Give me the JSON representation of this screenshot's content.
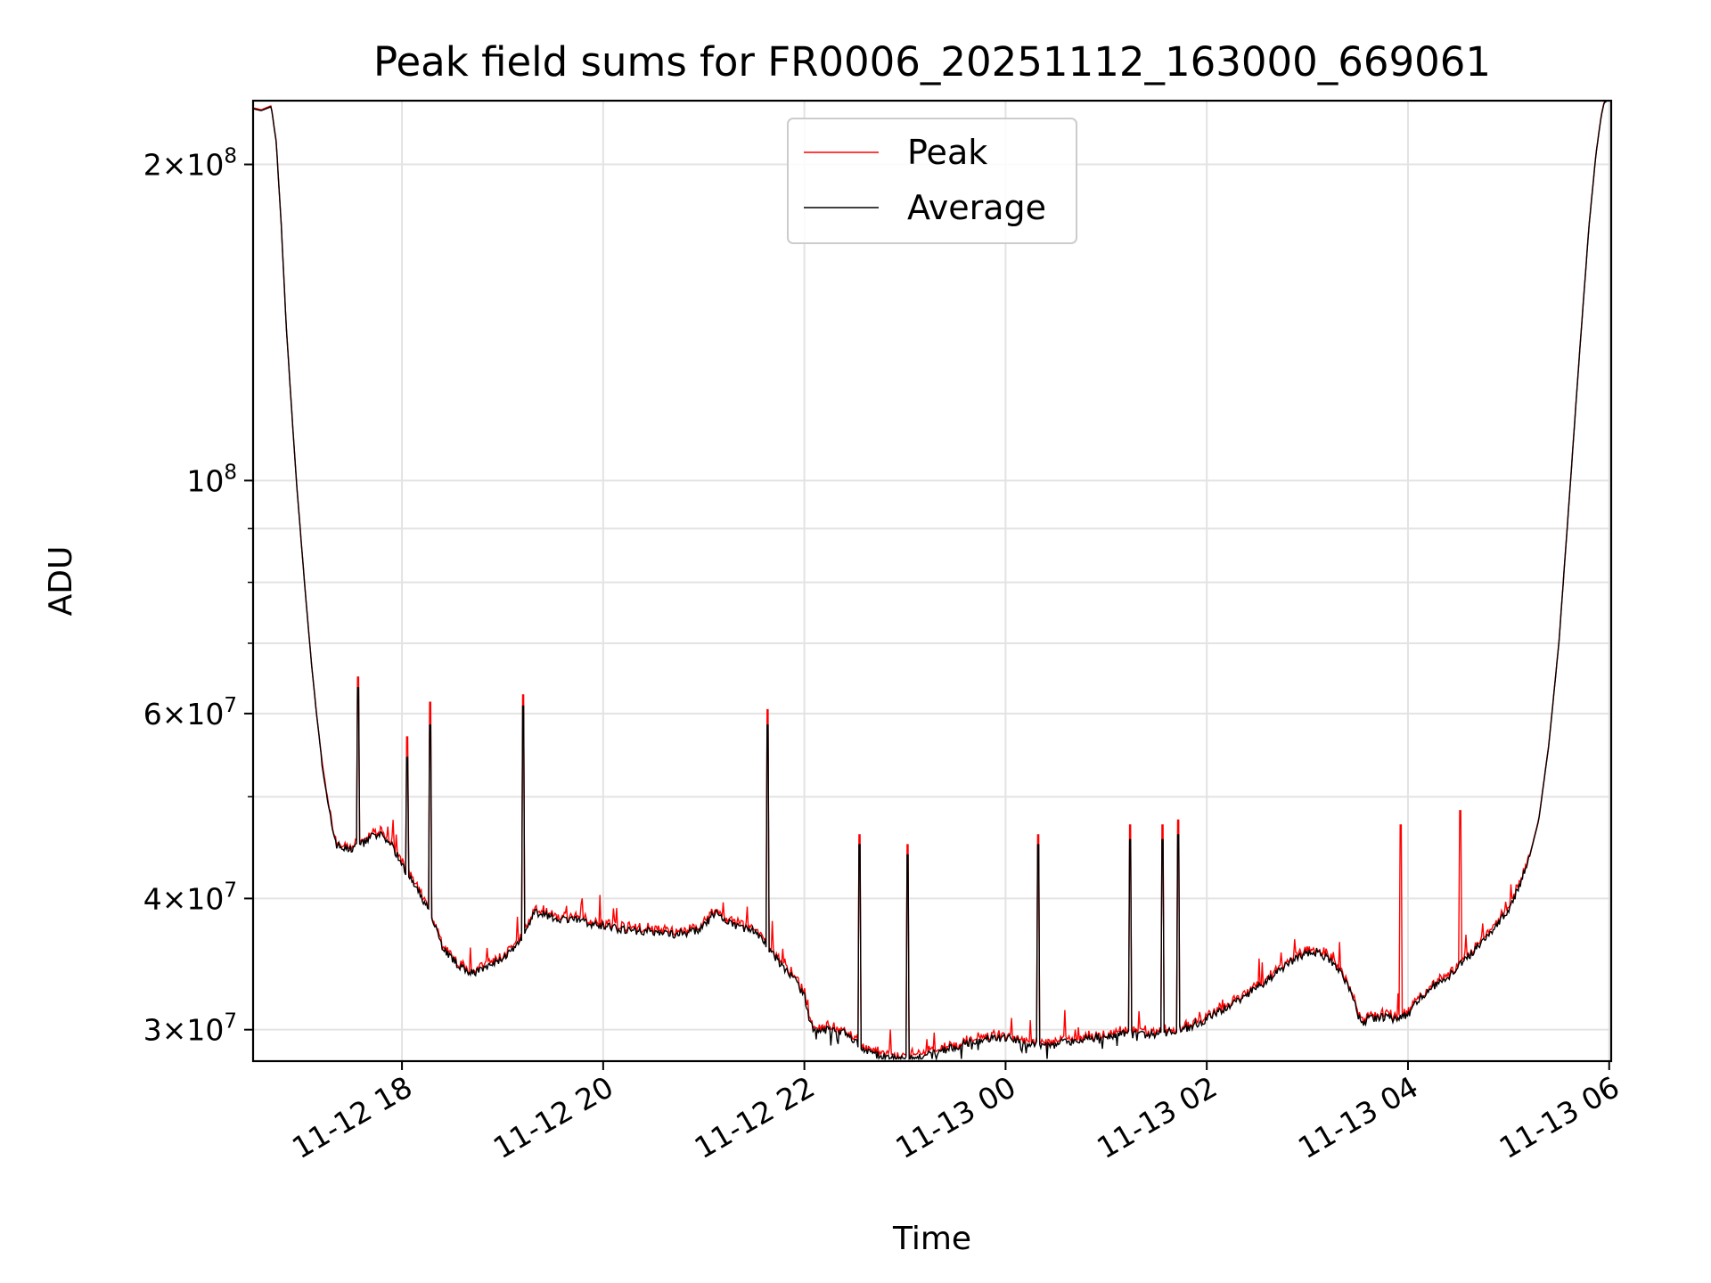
{
  "chart_data": {
    "type": "line",
    "title": "Peak field sums for FR0006_20251112_163000_669061",
    "xlabel": "Time",
    "ylabel": "ADU",
    "yscale": "log",
    "ylim": [
      28000000,
      230000000
    ],
    "xlim_hours": [
      16.52,
      30.02
    ],
    "grid": true,
    "legend_position": "upper center",
    "x_ticks": [
      {
        "hour": 18,
        "label": "11-12 18"
      },
      {
        "hour": 20,
        "label": "11-12 20"
      },
      {
        "hour": 22,
        "label": "11-12 22"
      },
      {
        "hour": 24,
        "label": "11-13 00"
      },
      {
        "hour": 26,
        "label": "11-13 02"
      },
      {
        "hour": 28,
        "label": "11-13 04"
      },
      {
        "hour": 30,
        "label": "11-13 06"
      }
    ],
    "y_ticks": [
      {
        "value": 30000000,
        "base": "3",
        "exp": "7"
      },
      {
        "value": 40000000,
        "base": "4",
        "exp": "7"
      },
      {
        "value": 60000000,
        "base": "6",
        "exp": "7"
      },
      {
        "value": 100000000,
        "base": "",
        "exp": "8"
      },
      {
        "value": 200000000,
        "base": "2",
        "exp": "8"
      }
    ],
    "y_minor_ticks": [
      50000000,
      70000000,
      80000000,
      90000000
    ],
    "series": [
      {
        "name": "Peak",
        "color": "#ff0000",
        "note": "closely follows Average with upward spikes",
        "spikes": [
          {
            "hour": 17.56,
            "value": 65000000
          },
          {
            "hour": 18.05,
            "value": 57000000
          },
          {
            "hour": 18.28,
            "value": 61500000
          },
          {
            "hour": 19.2,
            "value": 62500000
          },
          {
            "hour": 21.63,
            "value": 60500000
          },
          {
            "hour": 22.55,
            "value": 46000000
          },
          {
            "hour": 23.03,
            "value": 45000000
          },
          {
            "hour": 24.32,
            "value": 46000000
          },
          {
            "hour": 25.24,
            "value": 47000000
          },
          {
            "hour": 25.56,
            "value": 47000000
          },
          {
            "hour": 25.72,
            "value": 47500000
          },
          {
            "hour": 27.93,
            "value": 47000000
          },
          {
            "hour": 28.52,
            "value": 48500000
          }
        ]
      },
      {
        "name": "Average",
        "color": "#000000",
        "points": [
          [
            16.52,
            226000000
          ],
          [
            16.6,
            225000000
          ],
          [
            16.65,
            226000000
          ],
          [
            16.7,
            227000000
          ],
          [
            16.75,
            210000000
          ],
          [
            16.8,
            175000000
          ],
          [
            16.85,
            140000000
          ],
          [
            16.9,
            118000000
          ],
          [
            16.95,
            100000000
          ],
          [
            17.0,
            87000000
          ],
          [
            17.05,
            76000000
          ],
          [
            17.1,
            67000000
          ],
          [
            17.15,
            60000000
          ],
          [
            17.2,
            54500000
          ],
          [
            17.25,
            50000000
          ],
          [
            17.3,
            47000000
          ],
          [
            17.35,
            45000000
          ],
          [
            17.45,
            44500000
          ],
          [
            17.55,
            44800000
          ],
          [
            17.62,
            45200000
          ],
          [
            17.7,
            45800000
          ],
          [
            17.8,
            45900000
          ],
          [
            17.9,
            45000000
          ],
          [
            18.0,
            43000000
          ],
          [
            18.1,
            41500000
          ],
          [
            18.2,
            40000000
          ],
          [
            18.3,
            38500000
          ],
          [
            18.4,
            36000000
          ],
          [
            18.5,
            35000000
          ],
          [
            18.6,
            34300000
          ],
          [
            18.7,
            34000000
          ],
          [
            18.8,
            34200000
          ],
          [
            18.9,
            34600000
          ],
          [
            19.0,
            35100000
          ],
          [
            19.1,
            35700000
          ],
          [
            19.2,
            36500000
          ],
          [
            19.3,
            38700000
          ],
          [
            19.4,
            38800000
          ],
          [
            19.5,
            38300000
          ],
          [
            19.7,
            38200000
          ],
          [
            19.9,
            37800000
          ],
          [
            20.1,
            37500000
          ],
          [
            20.3,
            37300000
          ],
          [
            20.5,
            37200000
          ],
          [
            20.7,
            37000000
          ],
          [
            20.9,
            37200000
          ],
          [
            21.0,
            37600000
          ],
          [
            21.1,
            38700000
          ],
          [
            21.15,
            38700000
          ],
          [
            21.2,
            38000000
          ],
          [
            21.4,
            37500000
          ],
          [
            21.5,
            37300000
          ],
          [
            21.6,
            36400000
          ],
          [
            21.7,
            35300000
          ],
          [
            21.8,
            34300000
          ],
          [
            21.9,
            33500000
          ],
          [
            22.0,
            32300000
          ],
          [
            22.05,
            30500000
          ],
          [
            22.1,
            30000000
          ],
          [
            22.2,
            30000000
          ],
          [
            22.4,
            29800000
          ],
          [
            22.5,
            29200000
          ],
          [
            22.6,
            28600000
          ],
          [
            22.7,
            28400000
          ],
          [
            22.8,
            28300000
          ],
          [
            22.9,
            28200000
          ],
          [
            23.0,
            28200000
          ],
          [
            23.1,
            28300000
          ],
          [
            23.2,
            28300000
          ],
          [
            23.3,
            28500000
          ],
          [
            23.4,
            28700000
          ],
          [
            23.6,
            29100000
          ],
          [
            23.8,
            29400000
          ],
          [
            24.0,
            29500000
          ],
          [
            24.2,
            29200000
          ],
          [
            24.4,
            28900000
          ],
          [
            24.6,
            29200000
          ],
          [
            24.8,
            29400000
          ],
          [
            25.0,
            29600000
          ],
          [
            25.2,
            29700000
          ],
          [
            25.4,
            29700000
          ],
          [
            25.6,
            29800000
          ],
          [
            25.8,
            30100000
          ],
          [
            26.0,
            30700000
          ],
          [
            26.2,
            31500000
          ],
          [
            26.4,
            32400000
          ],
          [
            26.6,
            33400000
          ],
          [
            26.8,
            34600000
          ],
          [
            26.9,
            35200000
          ],
          [
            27.0,
            35500000
          ],
          [
            27.1,
            35600000
          ],
          [
            27.2,
            35100000
          ],
          [
            27.3,
            34200000
          ],
          [
            27.4,
            33200000
          ],
          [
            27.45,
            32200000
          ],
          [
            27.5,
            31000000
          ],
          [
            27.55,
            30500000
          ],
          [
            27.6,
            30700000
          ],
          [
            27.7,
            30800000
          ],
          [
            27.8,
            30800000
          ],
          [
            27.9,
            30700000
          ],
          [
            28.0,
            31000000
          ],
          [
            28.1,
            32000000
          ],
          [
            28.2,
            32700000
          ],
          [
            28.4,
            33700000
          ],
          [
            28.6,
            35200000
          ],
          [
            28.8,
            37000000
          ],
          [
            29.0,
            39000000
          ],
          [
            29.1,
            41000000
          ],
          [
            29.2,
            43500000
          ],
          [
            29.3,
            47500000
          ],
          [
            29.4,
            56000000
          ],
          [
            29.5,
            70000000
          ],
          [
            29.6,
            95000000
          ],
          [
            29.7,
            130000000
          ],
          [
            29.8,
            175000000
          ],
          [
            29.87,
            205000000
          ],
          [
            29.92,
            222000000
          ],
          [
            29.95,
            229000000
          ],
          [
            30.02,
            231000000
          ]
        ],
        "dips": [
          {
            "hour": 17.56,
            "value": 63500000
          },
          {
            "hour": 18.05,
            "value": 54500000
          },
          {
            "hour": 18.28,
            "value": 58500000
          },
          {
            "hour": 19.2,
            "value": 61000000
          },
          {
            "hour": 21.63,
            "value": 58500000
          },
          {
            "hour": 22.55,
            "value": 45000000
          },
          {
            "hour": 23.03,
            "value": 44000000
          },
          {
            "hour": 24.32,
            "value": 45000000
          },
          {
            "hour": 25.24,
            "value": 45500000
          },
          {
            "hour": 25.56,
            "value": 45500000
          },
          {
            "hour": 25.72,
            "value": 46000000
          }
        ]
      }
    ]
  }
}
